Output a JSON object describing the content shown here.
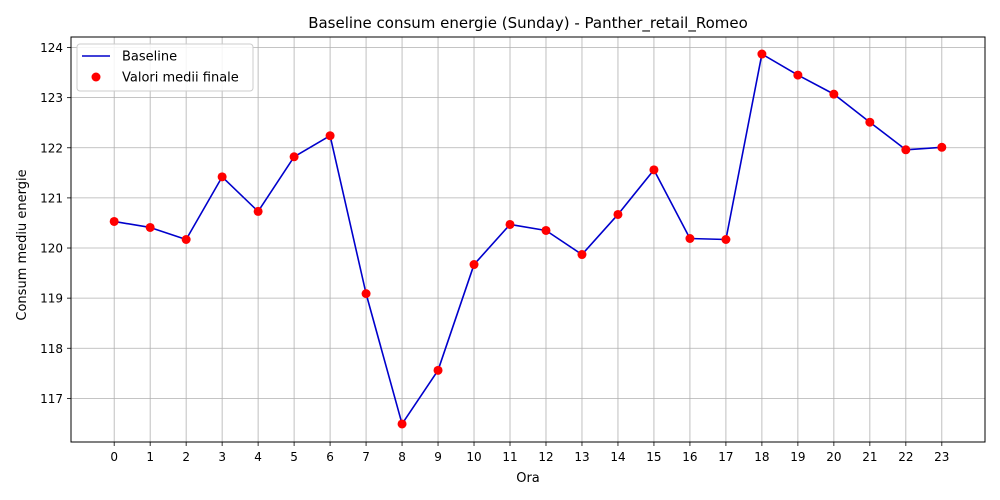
{
  "chart_data": {
    "type": "line",
    "title": "Baseline consum energie (Sunday) - Panther_retail_Romeo",
    "xlabel": "Ora",
    "ylabel": "Consum mediu energie",
    "x": [
      0,
      1,
      2,
      3,
      4,
      5,
      6,
      7,
      8,
      9,
      10,
      11,
      12,
      13,
      14,
      15,
      16,
      17,
      18,
      19,
      20,
      21,
      22,
      23
    ],
    "x_tick_labels": [
      "0",
      "1",
      "2",
      "3",
      "4",
      "5",
      "6",
      "7",
      "8",
      "9",
      "10",
      "11",
      "12",
      "13",
      "14",
      "15",
      "16",
      "17",
      "18",
      "19",
      "20",
      "21",
      "22",
      "23"
    ],
    "y_ticks": [
      117,
      118,
      119,
      120,
      121,
      122,
      123,
      124
    ],
    "y_tick_labels": [
      "117",
      "118",
      "119",
      "120",
      "121",
      "122",
      "123",
      "124"
    ],
    "xlim": [
      -1.2,
      24.2
    ],
    "ylim": [
      116.13,
      124.21
    ],
    "grid": true,
    "legend_position": "top-left",
    "series": [
      {
        "name": "Baseline",
        "kind": "line",
        "color": "#0000cc",
        "values": [
          120.53,
          120.41,
          120.17,
          121.42,
          120.73,
          121.82,
          122.24,
          119.09,
          116.49,
          117.56,
          119.67,
          120.47,
          120.35,
          119.87,
          120.67,
          121.56,
          120.19,
          120.17,
          123.87,
          123.45,
          123.07,
          122.51,
          121.96,
          122.01
        ]
      },
      {
        "name": "Valori medii finale",
        "kind": "scatter",
        "color": "#ff0000",
        "values": [
          120.53,
          120.41,
          120.17,
          121.42,
          120.73,
          121.82,
          122.24,
          119.09,
          116.49,
          117.56,
          119.67,
          120.47,
          120.35,
          119.87,
          120.67,
          121.56,
          120.19,
          120.17,
          123.87,
          123.45,
          123.07,
          122.51,
          121.96,
          122.01
        ]
      }
    ]
  }
}
